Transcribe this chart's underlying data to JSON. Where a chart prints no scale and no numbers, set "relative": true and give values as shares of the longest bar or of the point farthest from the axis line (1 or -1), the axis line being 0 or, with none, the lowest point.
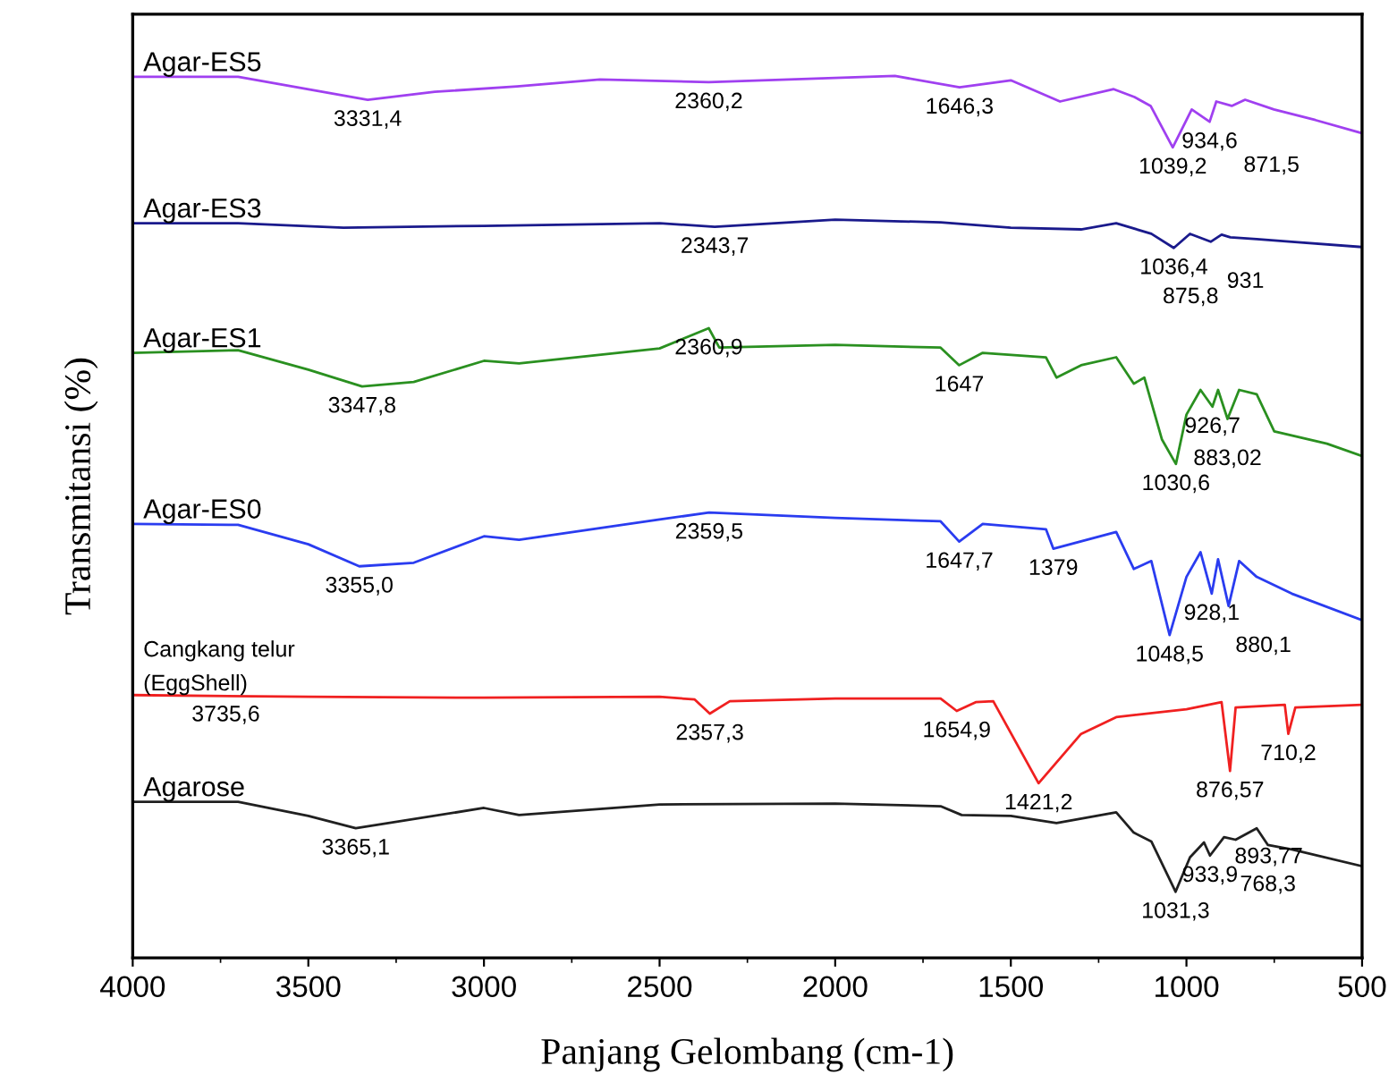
{
  "chart_data": {
    "type": "line",
    "relative": true,
    "xlabel": "Panjang Gelombang (cm-1)",
    "ylabel": "Transmitansi (%)",
    "xlim": [
      4000,
      500
    ],
    "xticks": [
      4000,
      3500,
      3000,
      2500,
      2000,
      1500,
      1000,
      500
    ],
    "grid": false,
    "legend": false,
    "marker": "none",
    "line_style": "solid",
    "tick_labels": "x",
    "series": [
      {
        "name": "Agar-ES5",
        "color": "#a040f0",
        "x": [
          4000,
          3700,
          3331,
          3140,
          2906,
          2670,
          2360,
          1830,
          1646,
          1500,
          1360,
          1207,
          1148,
          1102,
          1039,
          985,
          934,
          915,
          871,
          833,
          751,
          633,
          500
        ],
        "values": [
          0.999,
          0.999,
          0.973,
          0.982,
          0.988,
          0.996,
          0.993,
          1.0,
          0.987,
          0.995,
          0.971,
          0.985,
          0.976,
          0.966,
          0.919,
          0.962,
          0.948,
          0.971,
          0.966,
          0.973,
          0.962,
          0.95,
          0.935
        ]
      },
      {
        "name": "Agar-ES3",
        "color": "#1a1a8c",
        "x": [
          4000,
          3700,
          3400,
          3000,
          2500,
          2343,
          2000,
          1700,
          1500,
          1300,
          1200,
          1100,
          1036,
          990,
          931,
          900,
          875,
          800,
          700,
          500
        ],
        "values": [
          0.833,
          0.833,
          0.828,
          0.83,
          0.833,
          0.829,
          0.837,
          0.834,
          0.828,
          0.826,
          0.833,
          0.821,
          0.805,
          0.821,
          0.812,
          0.82,
          0.817,
          0.815,
          0.812,
          0.806
        ]
      },
      {
        "name": "Agar-ES1",
        "color": "#2a9020",
        "x": [
          4000,
          3700,
          3500,
          3347,
          3200,
          3000,
          2900,
          2500,
          2360,
          2330,
          2000,
          1700,
          1647,
          1580,
          1400,
          1370,
          1300,
          1200,
          1150,
          1120,
          1070,
          1030,
          1000,
          960,
          926,
          910,
          883,
          850,
          800,
          750,
          600,
          500
        ],
        "values": [
          0.686,
          0.689,
          0.667,
          0.648,
          0.653,
          0.677,
          0.674,
          0.691,
          0.714,
          0.692,
          0.695,
          0.692,
          0.672,
          0.686,
          0.681,
          0.658,
          0.672,
          0.681,
          0.651,
          0.658,
          0.588,
          0.56,
          0.616,
          0.644,
          0.625,
          0.644,
          0.611,
          0.644,
          0.639,
          0.597,
          0.583,
          0.569
        ]
      },
      {
        "name": "Agar-ES0",
        "color": "#2a3cf0",
        "x": [
          4000,
          3700,
          3500,
          3355,
          3200,
          3000,
          2900,
          2500,
          2359,
          2000,
          1700,
          1647,
          1580,
          1400,
          1379,
          1200,
          1150,
          1100,
          1048,
          1000,
          960,
          928,
          910,
          880,
          850,
          800,
          700,
          500
        ],
        "values": [
          0.492,
          0.491,
          0.469,
          0.444,
          0.448,
          0.478,
          0.474,
          0.497,
          0.505,
          0.499,
          0.495,
          0.472,
          0.492,
          0.486,
          0.464,
          0.483,
          0.441,
          0.45,
          0.366,
          0.432,
          0.46,
          0.413,
          0.452,
          0.399,
          0.45,
          0.432,
          0.413,
          0.383
        ]
      },
      {
        "name": "Cangkang telur\n(EggShell)",
        "color": "#f02020",
        "x": [
          4000,
          3500,
          3000,
          2500,
          2400,
          2357,
          2300,
          2000,
          1700,
          1654,
          1600,
          1550,
          1421,
          1300,
          1200,
          1000,
          900,
          876,
          860,
          720,
          710,
          690,
          500
        ],
        "values": [
          0.298,
          0.296,
          0.295,
          0.296,
          0.293,
          0.277,
          0.291,
          0.294,
          0.294,
          0.28,
          0.29,
          0.291,
          0.198,
          0.254,
          0.273,
          0.282,
          0.29,
          0.212,
          0.284,
          0.287,
          0.254,
          0.284,
          0.287
        ]
      },
      {
        "name": "Agarose",
        "color": "#202020",
        "x": [
          4000,
          3700,
          3500,
          3365,
          3000,
          2900,
          2500,
          2000,
          1700,
          1640,
          1500,
          1370,
          1200,
          1150,
          1100,
          1031,
          990,
          950,
          933,
          893,
          860,
          800,
          768,
          700,
          500
        ],
        "values": [
          0.177,
          0.177,
          0.161,
          0.147,
          0.17,
          0.162,
          0.174,
          0.175,
          0.172,
          0.162,
          0.161,
          0.153,
          0.165,
          0.142,
          0.132,
          0.075,
          0.114,
          0.131,
          0.116,
          0.137,
          0.134,
          0.147,
          0.128,
          0.123,
          0.104
        ]
      }
    ],
    "annotations": [
      {
        "text": "3331,4",
        "x": 3331,
        "y": 0.973
      },
      {
        "text": "2360,2",
        "x": 2360,
        "y": 0.993
      },
      {
        "text": "1646,3",
        "x": 1646,
        "y": 0.987
      },
      {
        "text": "1039,2",
        "x": 1039,
        "y": 0.919
      },
      {
        "text": "934,6",
        "x": 934,
        "y": 0.948
      },
      {
        "text": "871,5",
        "x": 871,
        "y": 0.966
      },
      {
        "text": "2343,7",
        "x": 2343,
        "y": 0.829
      },
      {
        "text": "1036,4",
        "x": 1036,
        "y": 0.805
      },
      {
        "text": "931",
        "x": 931,
        "y": 0.812
      },
      {
        "text": "875,8",
        "x": 875,
        "y": 0.817
      },
      {
        "text": "3347,8",
        "x": 3347,
        "y": 0.648
      },
      {
        "text": "2360,9",
        "x": 2360,
        "y": 0.714
      },
      {
        "text": "1647",
        "x": 1647,
        "y": 0.672
      },
      {
        "text": "1030,6",
        "x": 1030,
        "y": 0.56
      },
      {
        "text": "926,7",
        "x": 926,
        "y": 0.625
      },
      {
        "text": "883,02",
        "x": 883,
        "y": 0.611
      },
      {
        "text": "3355,0",
        "x": 3355,
        "y": 0.444
      },
      {
        "text": "2359,5",
        "x": 2359,
        "y": 0.505
      },
      {
        "text": "1647,7",
        "x": 1647,
        "y": 0.472
      },
      {
        "text": "1379",
        "x": 1379,
        "y": 0.464
      },
      {
        "text": "1048,5",
        "x": 1048,
        "y": 0.366
      },
      {
        "text": "928,1",
        "x": 928,
        "y": 0.413
      },
      {
        "text": "880,1",
        "x": 880,
        "y": 0.399
      },
      {
        "text": "3735,6",
        "x": 3735,
        "y": 0.298
      },
      {
        "text": "2357,3",
        "x": 2357,
        "y": 0.277
      },
      {
        "text": "1654,9",
        "x": 1654,
        "y": 0.28
      },
      {
        "text": "1421,2",
        "x": 1421,
        "y": 0.198
      },
      {
        "text": "876,57",
        "x": 876,
        "y": 0.212
      },
      {
        "text": "710,2",
        "x": 710,
        "y": 0.254
      },
      {
        "text": "3365,1",
        "x": 3365,
        "y": 0.147
      },
      {
        "text": "1031,3",
        "x": 1031,
        "y": 0.075
      },
      {
        "text": "933,9",
        "x": 933,
        "y": 0.116
      },
      {
        "text": "893,77",
        "x": 893,
        "y": 0.137
      },
      {
        "text": "768,3",
        "x": 768,
        "y": 0.128
      }
    ]
  }
}
